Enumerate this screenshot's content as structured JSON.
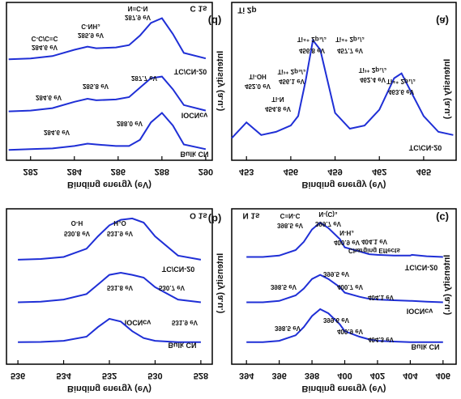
{
  "chart_data": [
    {
      "type": "line",
      "panel_label": "(d)",
      "title": "C 1s",
      "x_label": "Binding energy (eV)",
      "y_label": "Intensity (a.u.)",
      "x": [
        281,
        282,
        283,
        284,
        284.6,
        285,
        285.9,
        286.5,
        287,
        287.5,
        288,
        288.5,
        289,
        290
      ],
      "xlim": [
        280.9,
        290.3
      ],
      "xticks": [
        282,
        284,
        286,
        288,
        290
      ],
      "ylim": [
        0,
        100
      ],
      "series": [
        {
          "name": "TC/CN-20",
          "color": "#1f2fd6",
          "values": [
            64,
            64.5,
            66,
            70,
            72,
            71,
            71.5,
            73,
            79,
            87,
            90,
            80,
            68,
            64.5
          ]
        },
        {
          "name": "IOCNcv",
          "color": "#1f2fd6",
          "values": [
            31,
            31.5,
            33,
            37,
            39,
            38,
            38.5,
            40,
            46,
            52,
            53,
            45,
            35,
            31.5
          ]
        },
        {
          "name": "Bulk CN",
          "color": "#1f2fd6",
          "values": [
            6.5,
            7,
            7.5,
            9,
            10.5,
            10,
            9,
            9,
            13,
            24,
            30,
            22,
            10,
            7
          ]
        }
      ],
      "annotations": [
        "N=C-N",
        "287.9 eV",
        "C-NH₂",
        "285.9 eV",
        "C-C/C=C",
        "284.6 eV",
        "287.7 eV",
        "285.8 eV",
        "284.6 eV",
        "288.0 eV",
        "284.6 eV"
      ]
    },
    {
      "type": "line",
      "panel_label": "(a)",
      "title": "Ti 2p",
      "x_label": "Binding energy (eV)",
      "y_label": "Intensity (a.u.)",
      "x": [
        452,
        453,
        454,
        455,
        456,
        456.5,
        457,
        457.5,
        458,
        459,
        460,
        461,
        462,
        463,
        463.5,
        464,
        465,
        466,
        467
      ],
      "xlim": [
        452,
        467.2
      ],
      "xticks": [
        453,
        456,
        459,
        462,
        465
      ],
      "ylim": [
        0,
        100
      ],
      "series": [
        {
          "name": "TC/CN-20",
          "color": "#1f2fd6",
          "values": [
            14,
            24,
            16,
            18,
            22,
            28,
            50,
            76,
            70,
            30,
            20,
            22,
            32,
            52,
            55,
            46,
            28,
            18,
            16
          ]
        }
      ],
      "annotations": [
        "Ti-OH",
        "452.0 eV",
        "Ti-N",
        "454.8 eV",
        "Ti³⁺ 2p₃/₂",
        "456.1 eV",
        "Ti⁴⁺ 2p₃/₂",
        "456.8 eV",
        "Ti⁴⁺ 2p₁/₂",
        "457.7 eV",
        "Ti³⁺ 2p₁/₂",
        "462.4 eV",
        "Ti⁴⁺ 2p₁/₂",
        "463.6 eV"
      ]
    },
    {
      "type": "line",
      "panel_label": "(b)",
      "title": "O 1s",
      "x_label": "Binding energy (eV)",
      "y_label": "Intensity (a.u.)",
      "x": [
        536,
        535,
        534,
        533,
        532.5,
        532,
        531.5,
        531,
        530.5,
        530,
        529,
        528
      ],
      "xlim": [
        536.5,
        527.5
      ],
      "xticks": [
        536,
        534,
        532,
        530,
        528
      ],
      "ylim": [
        -13,
        100
      ],
      "series": [
        {
          "name": "TC/CN-20",
          "color": "#1f2fd6",
          "values": [
            63,
            63.5,
            65,
            71,
            80,
            88,
            92,
            93,
            90,
            80,
            66,
            63
          ]
        },
        {
          "name": "IOCNcv",
          "color": "#1f2fd6",
          "values": [
            32,
            32.5,
            34,
            38,
            45,
            52,
            53.5,
            52,
            50,
            43,
            34,
            32
          ]
        },
        {
          "name": "Bulk CN",
          "color": "#1f2fd6",
          "values": [
            3,
            3.2,
            4,
            7,
            14,
            20,
            18,
            11,
            6,
            4,
            3,
            3
          ]
        }
      ],
      "annotations": [
        "O-H",
        "530.8 eV",
        "H₂O",
        "531.9 eV",
        "531.8 eV",
        "530.7 eV",
        "531.9 eV"
      ]
    },
    {
      "type": "line",
      "panel_label": "(c)",
      "title": "N 1s",
      "x_label": "Binding energy (eV)",
      "y_label": "Intensity (a.u.)",
      "x": [
        394,
        395,
        396,
        397,
        397.5,
        398,
        398.5,
        399,
        399.7,
        400,
        400.9,
        401.5,
        402,
        403,
        404,
        404.1,
        405,
        406
      ],
      "xlim": [
        393.1,
        406.8
      ],
      "xticks": [
        394,
        396,
        398,
        400,
        402,
        404,
        406
      ],
      "ylim": [
        -13,
        100
      ],
      "series": [
        {
          "name": "TC/CN-20",
          "color": "#1f2fd6",
          "values": [
            65,
            65,
            66,
            70,
            76,
            85,
            90,
            86,
            78,
            72,
            69,
            67,
            66.5,
            66,
            66,
            66.5,
            65.5,
            65
          ]
        },
        {
          "name": "IOCNcv",
          "color": "#1f2fd6",
          "values": [
            32,
            32,
            33,
            37,
            42,
            49,
            52,
            49,
            43,
            39,
            36,
            34.5,
            34,
            33.5,
            33,
            33,
            32.5,
            32
          ]
        },
        {
          "name": "Bulk CN",
          "color": "#1f2fd6",
          "values": [
            3,
            3,
            4,
            8,
            14,
            22,
            27,
            24,
            16,
            11,
            7,
            5,
            4,
            3.5,
            3,
            3,
            3,
            3
          ]
        }
      ],
      "annotations": [
        "C=N-C",
        "398.5 eV",
        "N-(C)₃",
        "399.7 eV",
        "N-H₂",
        "400.9 eV",
        "404.1 eV",
        "Charging Effects",
        "399.5 eV",
        "398.5 eV",
        "400.7 eV",
        "404.1 eV",
        "399.6 eV",
        "398.5 eV",
        "400.9 eV",
        "404.3 eV"
      ]
    }
  ]
}
